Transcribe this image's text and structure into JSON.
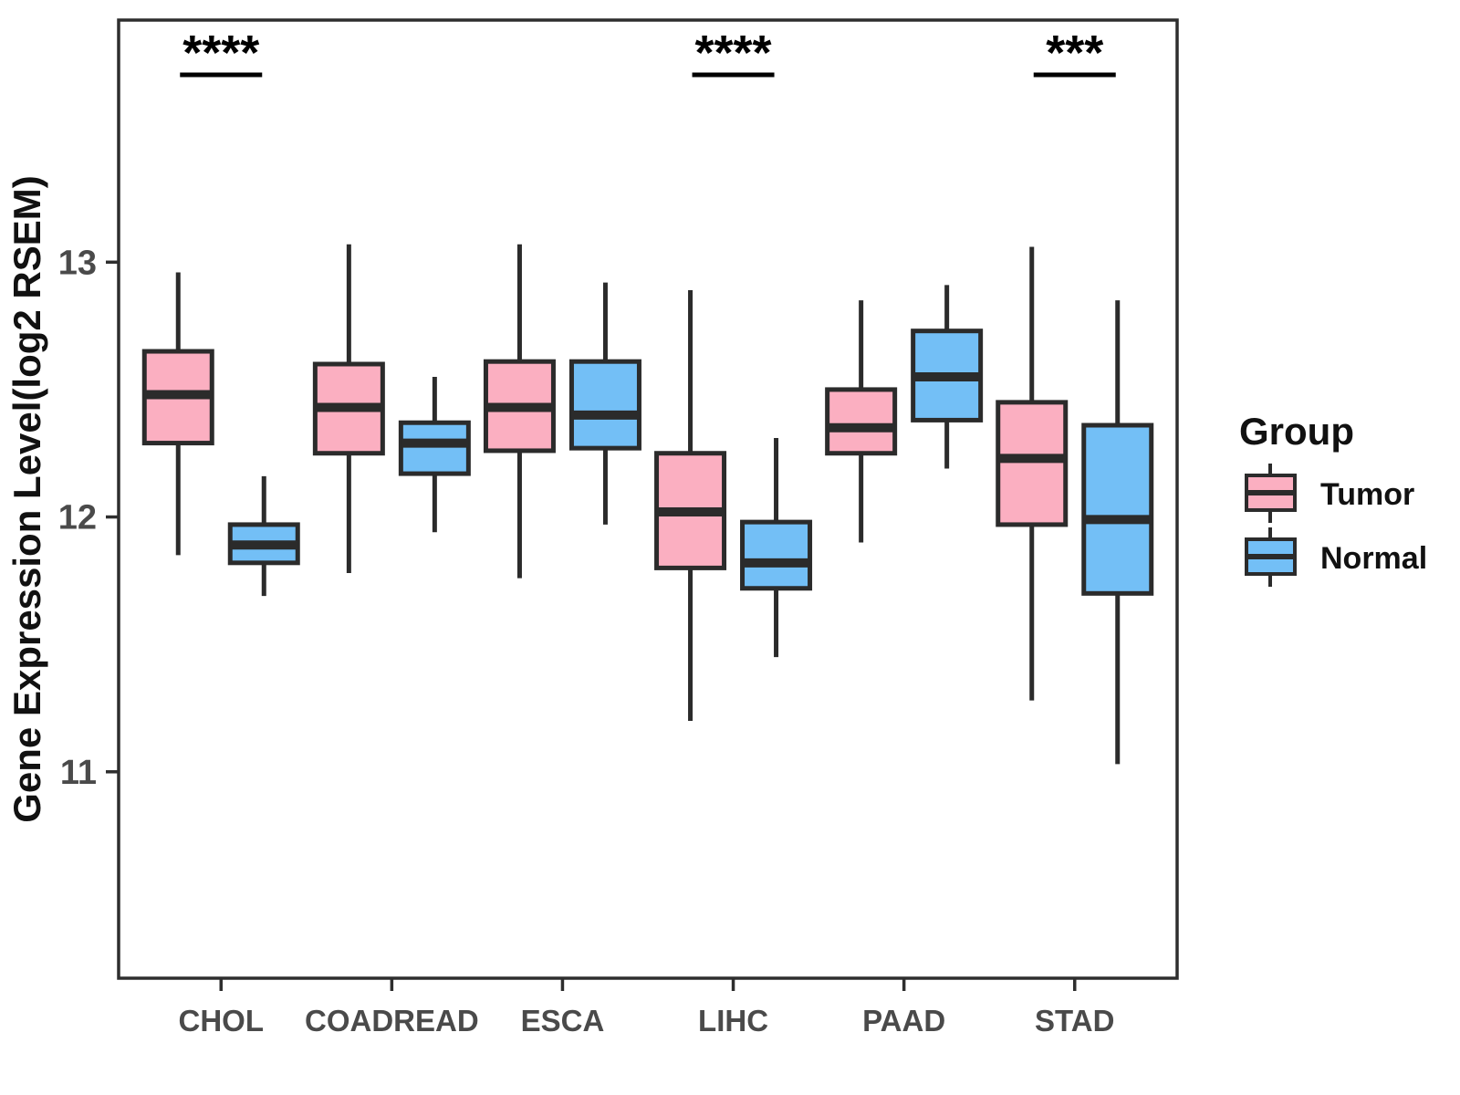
{
  "chart_data": {
    "type": "boxplot",
    "title": "",
    "xlabel": "",
    "ylabel": "Gene Expression Level(log2 RSEM)",
    "categories": [
      "CHOL",
      "COADREAD",
      "ESCA",
      "LIHC",
      "PAAD",
      "STAD"
    ],
    "yticks": [
      11,
      12,
      13
    ],
    "ylim": [
      10.19,
      13.95
    ],
    "grid": "off",
    "legend_position": "right",
    "legend": {
      "title": "Group",
      "entries": [
        {
          "label": "Tumor",
          "color": "#FBAFC1"
        },
        {
          "label": "Normal",
          "color": "#73BFF6"
        }
      ]
    },
    "colors": {
      "box_stroke": "#2b2b2b",
      "panel_border": "#2e2e2e",
      "tick_text": "#4a4a4a",
      "significance": "#000000"
    },
    "series": [
      {
        "name": "Tumor",
        "color": "#FBAFC1",
        "boxes": [
          {
            "category": "CHOL",
            "whisker_low": 11.85,
            "q1": 12.29,
            "median": 12.48,
            "q3": 12.65,
            "whisker_high": 12.96
          },
          {
            "category": "COADREAD",
            "whisker_low": 11.78,
            "q1": 12.25,
            "median": 12.43,
            "q3": 12.6,
            "whisker_high": 13.07
          },
          {
            "category": "ESCA",
            "whisker_low": 11.76,
            "q1": 12.26,
            "median": 12.43,
            "q3": 12.61,
            "whisker_high": 13.07
          },
          {
            "category": "LIHC",
            "whisker_low": 11.2,
            "q1": 11.8,
            "median": 12.02,
            "q3": 12.25,
            "whisker_high": 12.89
          },
          {
            "category": "PAAD",
            "whisker_low": 11.9,
            "q1": 12.25,
            "median": 12.35,
            "q3": 12.5,
            "whisker_high": 12.85
          },
          {
            "category": "STAD",
            "whisker_low": 11.28,
            "q1": 11.97,
            "median": 12.23,
            "q3": 12.45,
            "whisker_high": 13.06
          }
        ]
      },
      {
        "name": "Normal",
        "color": "#73BFF6",
        "boxes": [
          {
            "category": "CHOL",
            "whisker_low": 11.69,
            "q1": 11.82,
            "median": 11.89,
            "q3": 11.97,
            "whisker_high": 12.16
          },
          {
            "category": "COADREAD",
            "whisker_low": 11.94,
            "q1": 12.17,
            "median": 12.29,
            "q3": 12.37,
            "whisker_high": 12.55
          },
          {
            "category": "ESCA",
            "whisker_low": 11.97,
            "q1": 12.27,
            "median": 12.4,
            "q3": 12.61,
            "whisker_high": 12.92
          },
          {
            "category": "LIHC",
            "whisker_low": 11.45,
            "q1": 11.72,
            "median": 11.82,
            "q3": 11.98,
            "whisker_high": 12.31
          },
          {
            "category": "PAAD",
            "whisker_low": 12.19,
            "q1": 12.38,
            "median": 12.55,
            "q3": 12.73,
            "whisker_high": 12.91
          },
          {
            "category": "STAD",
            "whisker_low": 11.03,
            "q1": 11.7,
            "median": 11.99,
            "q3": 12.36,
            "whisker_high": 12.85
          }
        ]
      }
    ],
    "significance": [
      {
        "category": "CHOL",
        "label": "****"
      },
      {
        "category": "LIHC",
        "label": "****"
      },
      {
        "category": "STAD",
        "label": "***"
      }
    ]
  }
}
